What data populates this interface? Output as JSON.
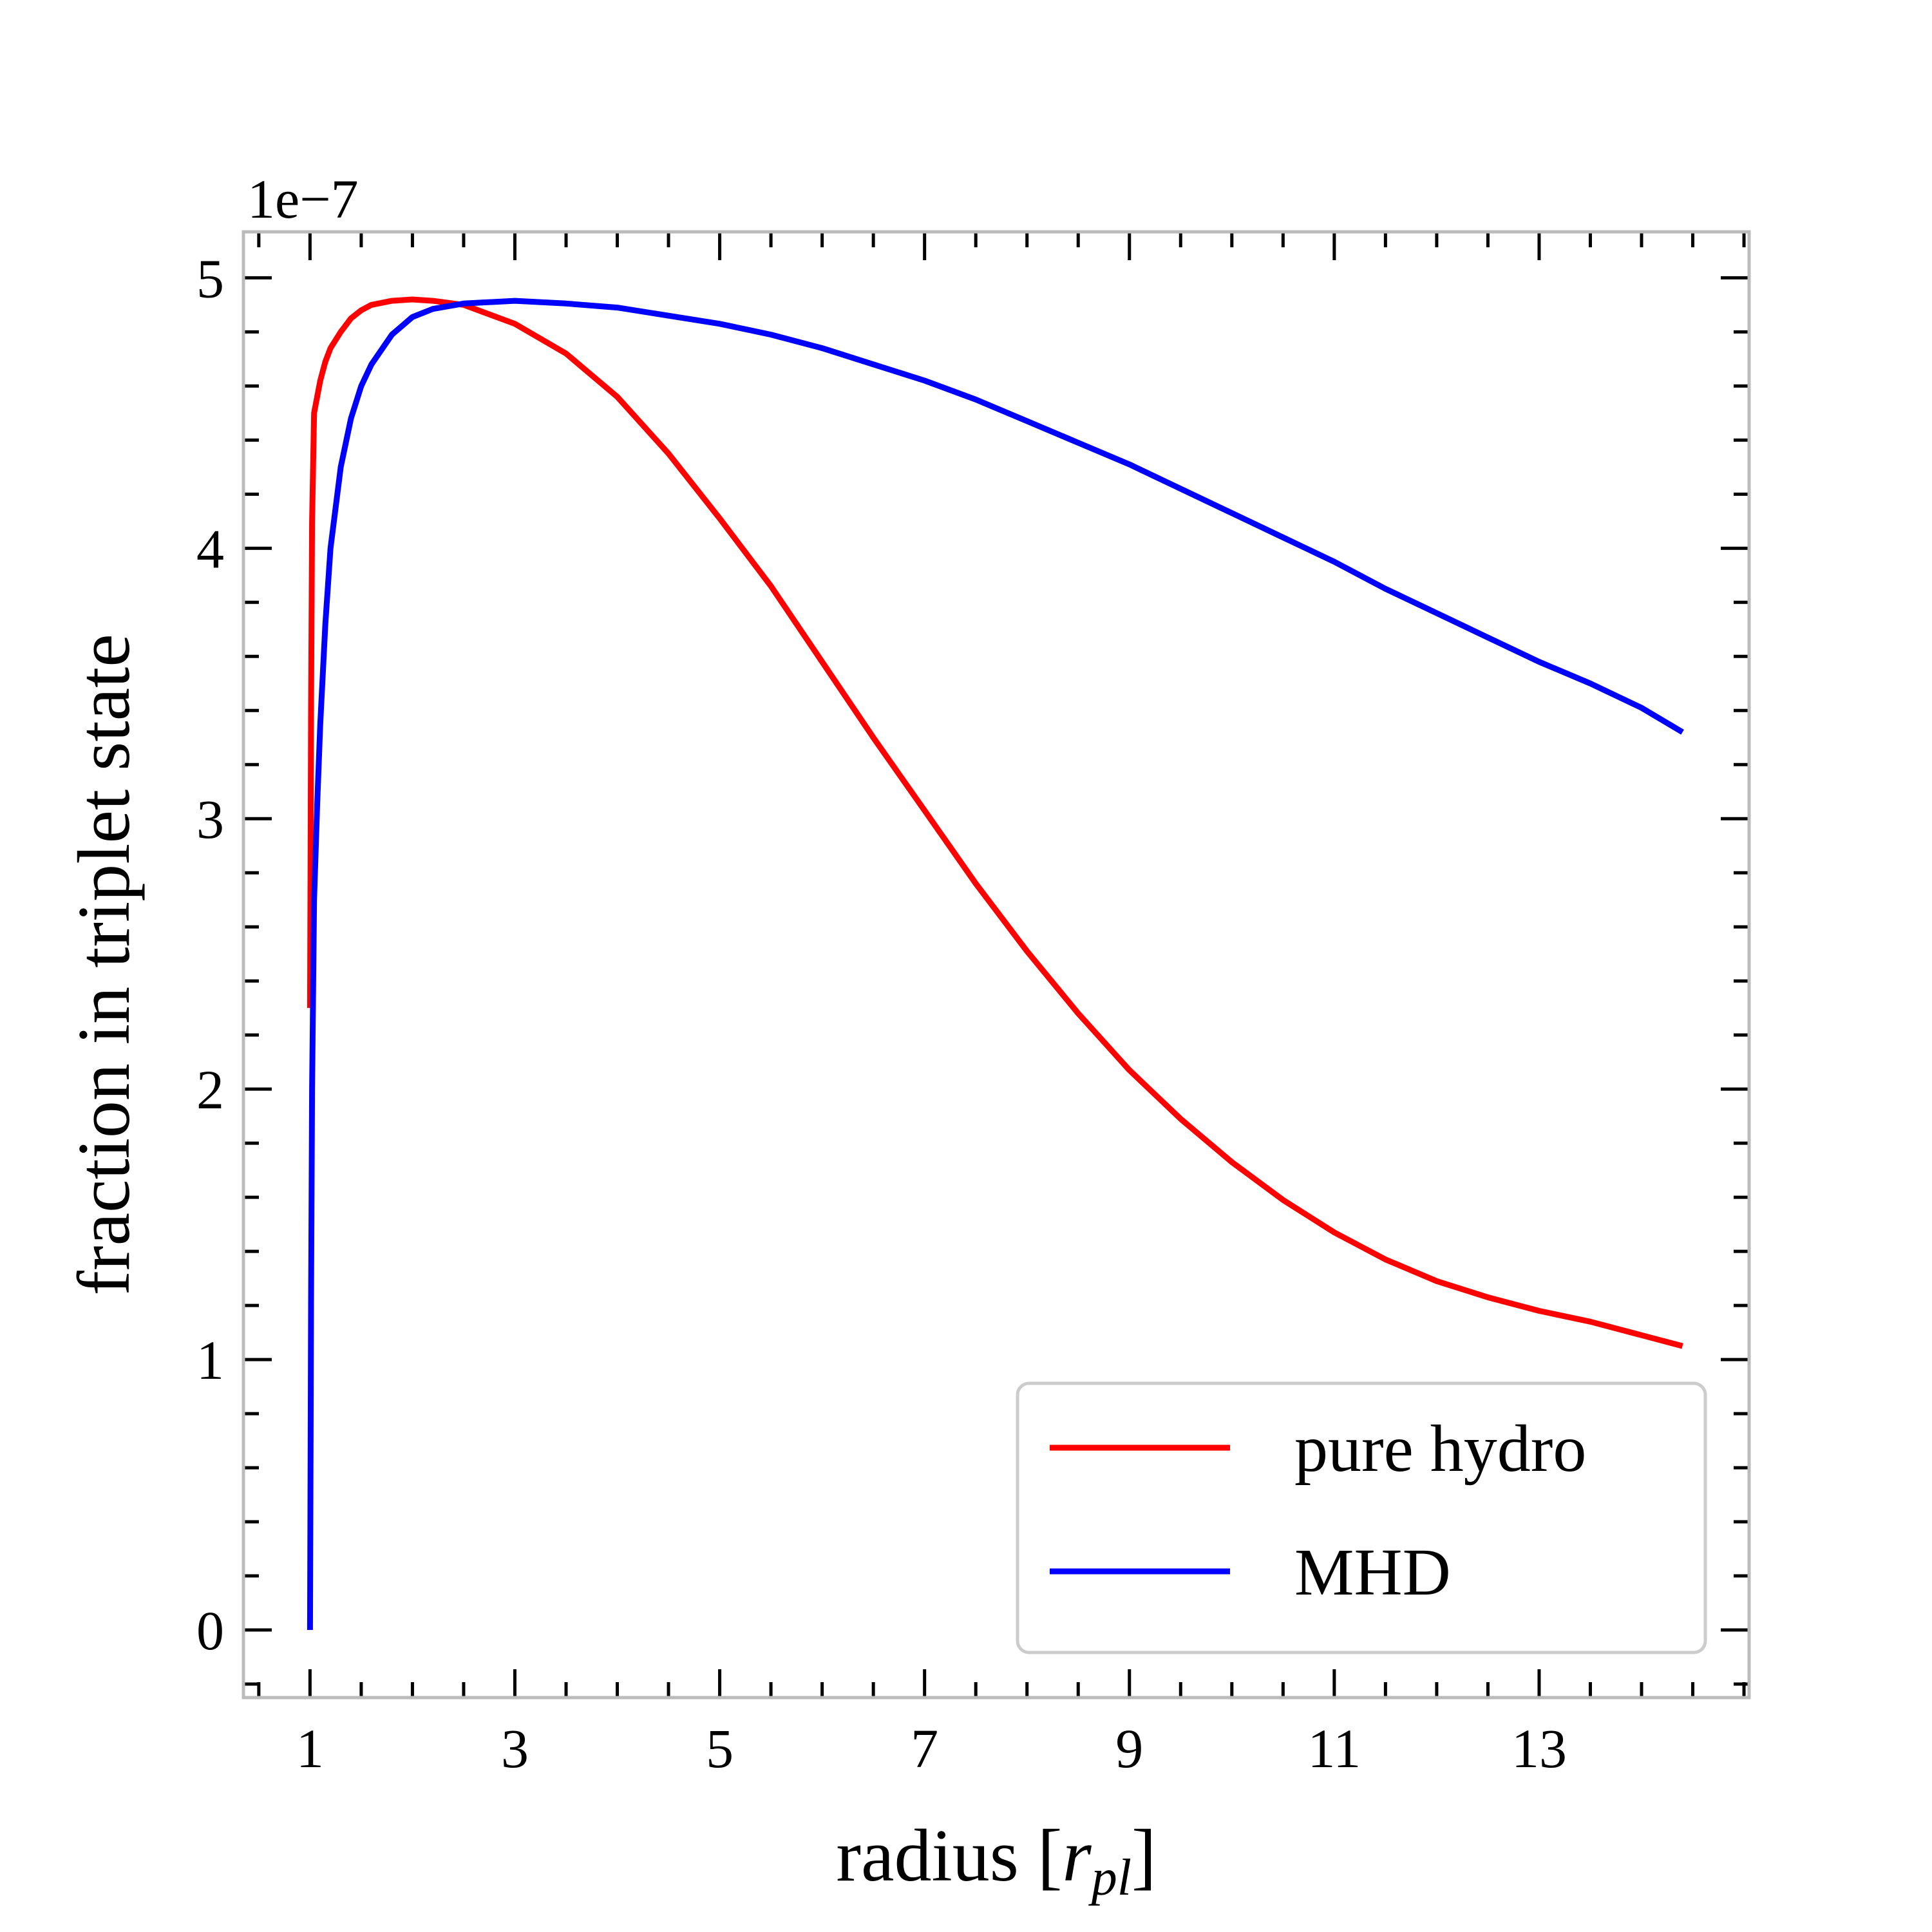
{
  "chart_data": {
    "type": "line",
    "title": "",
    "xlabel": "radius [",
    "xlabel_var": "r",
    "xlabel_sub": "pl",
    "xlabel_end": "]",
    "ylabel": "fraction in triplet state",
    "y_offset_label": "1e−7",
    "xlim": [
      0.35,
      15.05
    ],
    "ylim": [
      -0.25,
      5.17
    ],
    "xticks": [
      1,
      3,
      5,
      7,
      9,
      11,
      13
    ],
    "xtick_labels": [
      "1",
      "3",
      "5",
      "7",
      "9",
      "11",
      "13"
    ],
    "yticks": [
      0,
      1,
      2,
      3,
      4,
      5
    ],
    "ytick_labels": [
      "0",
      "1",
      "2",
      "3",
      "4",
      "5"
    ],
    "x_minor_step": 0.5,
    "y_minor_step": 0.2,
    "grid": false,
    "legend_position": "lower-right",
    "series": [
      {
        "name": "pure hydro",
        "color": "#ff0000",
        "x": [
          1.0,
          1.01,
          1.02,
          1.04,
          1.07,
          1.1,
          1.15,
          1.2,
          1.3,
          1.4,
          1.5,
          1.6,
          1.8,
          2.0,
          2.2,
          2.5,
          3.0,
          3.5,
          4.0,
          4.5,
          5.0,
          5.5,
          6.0,
          6.5,
          7.0,
          7.5,
          8.0,
          8.5,
          9.0,
          9.5,
          10.0,
          10.5,
          11.0,
          11.5,
          12.0,
          12.5,
          13.0,
          13.5,
          14.0,
          14.4
        ],
        "values": [
          2.3,
          3.4,
          4.1,
          4.5,
          4.56,
          4.62,
          4.69,
          4.74,
          4.8,
          4.85,
          4.88,
          4.9,
          4.915,
          4.92,
          4.915,
          4.9,
          4.83,
          4.72,
          4.56,
          4.35,
          4.11,
          3.86,
          3.58,
          3.3,
          3.03,
          2.76,
          2.51,
          2.28,
          2.07,
          1.89,
          1.73,
          1.59,
          1.47,
          1.37,
          1.29,
          1.23,
          1.18,
          1.14,
          1.09,
          1.05
        ]
      },
      {
        "name": "MHD",
        "color": "#0000ff",
        "x": [
          1.0,
          1.01,
          1.02,
          1.04,
          1.07,
          1.1,
          1.15,
          1.2,
          1.3,
          1.4,
          1.5,
          1.6,
          1.8,
          2.0,
          2.2,
          2.5,
          3.0,
          3.5,
          4.0,
          4.5,
          5.0,
          5.5,
          6.0,
          6.5,
          7.0,
          7.5,
          8.0,
          8.5,
          9.0,
          9.5,
          10.0,
          10.5,
          11.0,
          11.5,
          12.0,
          12.5,
          13.0,
          13.5,
          14.0,
          14.4
        ],
        "values": [
          0.0,
          1.2,
          2.0,
          2.7,
          3.05,
          3.35,
          3.72,
          4.0,
          4.3,
          4.48,
          4.6,
          4.68,
          4.79,
          4.855,
          4.885,
          4.905,
          4.915,
          4.905,
          4.89,
          4.86,
          4.83,
          4.79,
          4.74,
          4.68,
          4.62,
          4.55,
          4.47,
          4.39,
          4.31,
          4.22,
          4.13,
          4.04,
          3.95,
          3.85,
          3.76,
          3.67,
          3.58,
          3.5,
          3.41,
          3.32
        ]
      }
    ]
  }
}
